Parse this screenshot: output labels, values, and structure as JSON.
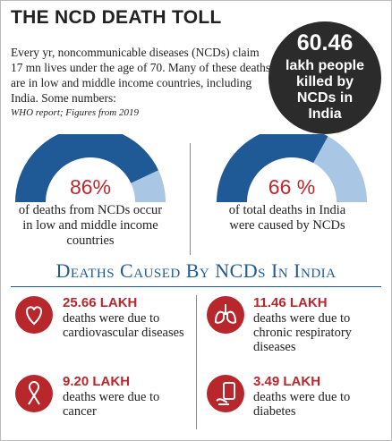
{
  "header": {
    "title": "THE NCD DEATH TOLL"
  },
  "intro": {
    "text": "Every yr, noncommunicable diseases (NCDs) claim 17 mn lives under the age of 70. Many of these deaths are in low and middle income countries, including India. Some numbers:",
    "source": "WHO report; Figures from 2019"
  },
  "callout": {
    "value": "60.46",
    "text": "lakh people killed by NCDs in India"
  },
  "gauges": [
    {
      "value": 86,
      "label": "86%",
      "caption": "of deaths from NCDs occur in low and middle income countries"
    },
    {
      "value": 66,
      "label": "66 %",
      "caption": "of total deaths in India were caused by NCDs"
    }
  ],
  "section": {
    "title": "Deaths Caused By NCDs In India"
  },
  "causes": [
    {
      "amount": "25.66 LAKH",
      "text": "deaths were due to cardiovascular diseases"
    },
    {
      "amount": "11.46 LAKH",
      "text": "deaths were due to chronic respiratory diseases"
    },
    {
      "amount": "9.20 LAKH",
      "text": "deaths were due to cancer"
    },
    {
      "amount": "3.49 LAKH",
      "text": "deaths were due to diabetes"
    }
  ]
}
